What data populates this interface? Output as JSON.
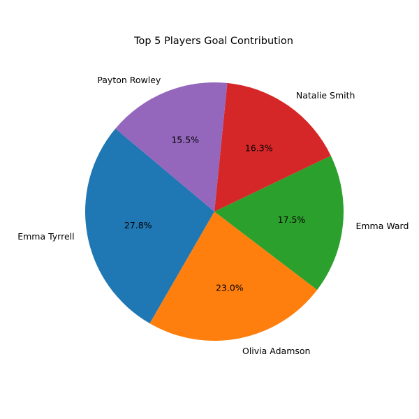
{
  "chart_data": {
    "type": "pie",
    "title": "Top 5 Players Goal Contribution",
    "start_angle_deg": 140,
    "direction": "counterclockwise",
    "slices": [
      {
        "label": "Emma Tyrrell",
        "value": 27.8,
        "pct_text": "27.8%",
        "color": "#1f77b4"
      },
      {
        "label": "Olivia Adamson",
        "value": 23.0,
        "pct_text": "23.0%",
        "color": "#ff7f0e"
      },
      {
        "label": "Emma Ward",
        "value": 17.5,
        "pct_text": "17.5%",
        "color": "#2ca02c"
      },
      {
        "label": "Natalie Smith",
        "value": 16.3,
        "pct_text": "16.3%",
        "color": "#d62728"
      },
      {
        "label": "Payton Rowley",
        "value": 15.5,
        "pct_text": "15.5%",
        "color": "#9467bd"
      }
    ]
  }
}
